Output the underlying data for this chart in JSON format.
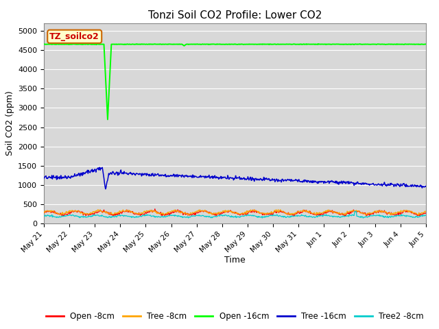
{
  "title": "Tonzi Soil CO2 Profile: Lower CO2",
  "ylabel": "Soil CO2 (ppm)",
  "xlabel": "Time",
  "ylim": [
    0,
    5200
  ],
  "yticks": [
    0,
    500,
    1000,
    1500,
    2000,
    2500,
    3000,
    3500,
    4000,
    4500,
    5000
  ],
  "bg_color": "#d8d8d8",
  "legend_label": "TZ_soilco2",
  "series": {
    "open_8cm": {
      "label": "Open -8cm",
      "color": "#ff0000"
    },
    "tree_8cm": {
      "label": "Tree -8cm",
      "color": "#ffa500"
    },
    "open_16cm": {
      "label": "Open -16cm",
      "color": "#00ff00"
    },
    "tree_16cm": {
      "label": "Tree -16cm",
      "color": "#0000cc"
    },
    "tree2_8cm": {
      "label": "Tree2 -8cm",
      "color": "#00cccc"
    }
  },
  "xtick_days": [
    0,
    1,
    2,
    3,
    4,
    5,
    6,
    7,
    8,
    9,
    10,
    11,
    12,
    13,
    14,
    15
  ],
  "xtick_labels": [
    "May 21",
    "May 22",
    "May 23",
    "May 24",
    "May 25",
    "May 26",
    "May 27",
    "May 28",
    "May 29",
    "May 30",
    "May 31",
    "Jun 1",
    "Jun 2",
    "Jun 3",
    "Jun 4",
    "Jun 5"
  ],
  "n_days": 15,
  "seed": 42
}
